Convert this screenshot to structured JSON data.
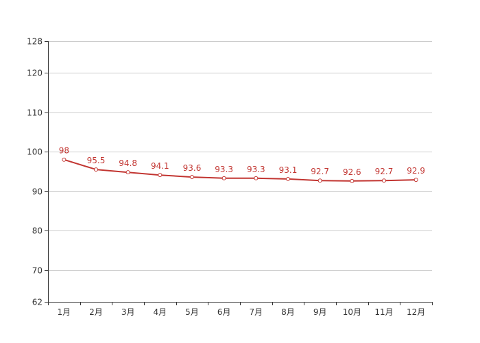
{
  "chart_data": {
    "type": "line",
    "title": "",
    "xlabel": "",
    "ylabel": "",
    "categories": [
      "1月",
      "2月",
      "3月",
      "4月",
      "5月",
      "6月",
      "7月",
      "8月",
      "9月",
      "10月",
      "11月",
      "12月"
    ],
    "series": [
      {
        "values": [
          98,
          95.5,
          94.8,
          94.1,
          93.6,
          93.3,
          93.3,
          93.1,
          92.7,
          92.6,
          92.7,
          92.9
        ],
        "color": "#c23531"
      }
    ],
    "ylim": [
      62,
      128
    ],
    "yticks": [
      62,
      70,
      80,
      90,
      100,
      110,
      120,
      128
    ],
    "grid": true,
    "legend": "none"
  }
}
